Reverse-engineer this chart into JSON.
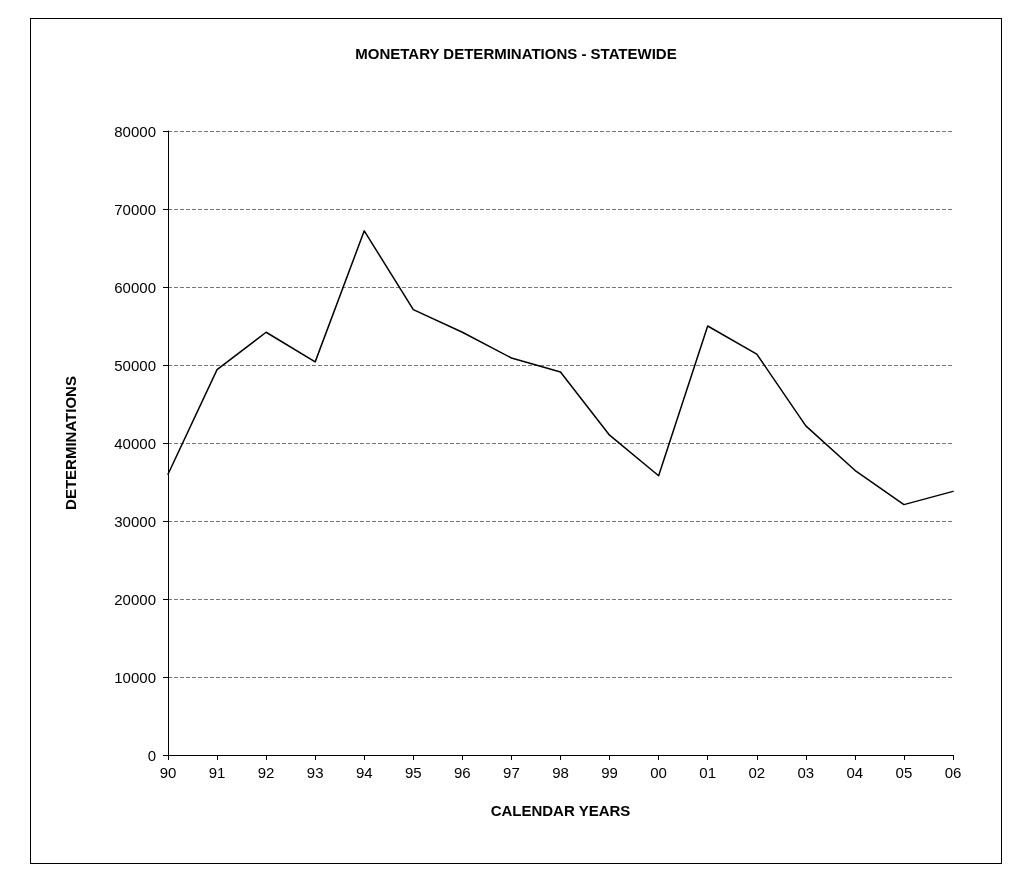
{
  "chart_data": {
    "type": "line",
    "title": "MONETARY DETERMINATIONS - STATEWIDE",
    "xlabel": "CALENDAR YEARS",
    "ylabel": "DETERMINATIONS",
    "categories": [
      "90",
      "91",
      "92",
      "93",
      "94",
      "95",
      "96",
      "97",
      "98",
      "99",
      "00",
      "01",
      "02",
      "03",
      "04",
      "05",
      "06"
    ],
    "series": [
      {
        "color": "#000000",
        "values": [
          36000,
          49400,
          54200,
          50400,
          67200,
          57100,
          54200,
          50900,
          49100,
          41000,
          35800,
          55000,
          51400,
          42200,
          36500,
          32100,
          33800
        ]
      }
    ],
    "ylim": [
      0,
      80000
    ],
    "yticks": [
      0,
      10000,
      20000,
      30000,
      40000,
      50000,
      60000,
      70000,
      80000
    ],
    "grid": "y",
    "marker": "none",
    "line_style": "solid"
  }
}
